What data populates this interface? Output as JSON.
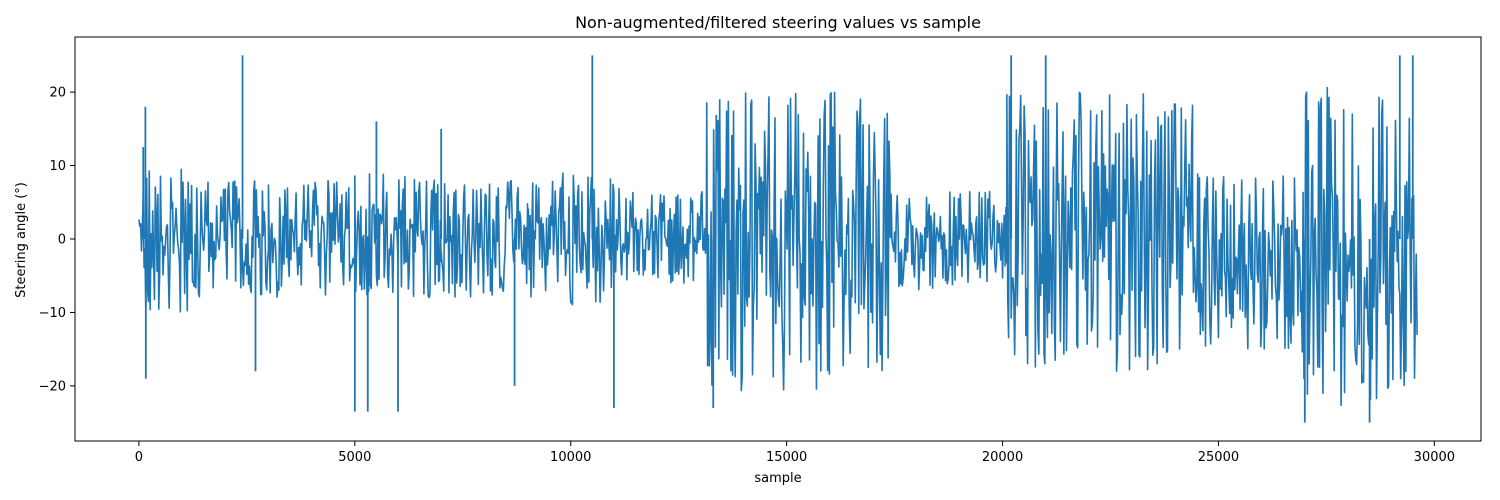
{
  "chart_data": {
    "type": "line",
    "title": "Non-augmented/filtered steering values vs sample",
    "xlabel": "sample",
    "ylabel": "Steering angle (°)",
    "xlim": [
      -1480,
      31080
    ],
    "ylim": [
      -27.5,
      27.5
    ],
    "xticks": [
      0,
      5000,
      10000,
      15000,
      20000,
      25000,
      30000
    ],
    "yticks": [
      -20,
      -10,
      0,
      10,
      20
    ],
    "grid": false,
    "colors": {
      "series": "#1f77b4",
      "axes": "#000000",
      "background": "#ffffff"
    },
    "series": [
      {
        "segments": [
          {
            "x": [
              0,
              1200
            ],
            "amp": [
              -10,
              10
            ]
          },
          {
            "x": [
              1200,
              3000
            ],
            "amp": [
              -8,
              8
            ]
          },
          {
            "x": [
              3000,
              5000
            ],
            "amp": [
              -8,
              8
            ]
          },
          {
            "x": [
              5000,
              7000
            ],
            "amp": [
              -8,
              9
            ]
          },
          {
            "x": [
              7000,
              9000
            ],
            "amp": [
              -8,
              8
            ]
          },
          {
            "x": [
              9000,
              11000
            ],
            "amp": [
              -9,
              9
            ]
          },
          {
            "x": [
              11000,
              13150
            ],
            "amp": [
              -6,
              7
            ]
          },
          {
            "x": [
              13150,
              17400
            ],
            "amp": [
              -21,
              20
            ]
          },
          {
            "x": [
              17400,
              20100
            ],
            "amp": [
              -7,
              6.5
            ]
          },
          {
            "x": [
              20100,
              24400
            ],
            "amp": [
              -18,
              20
            ]
          },
          {
            "x": [
              24400,
              26900
            ],
            "amp": [
              -15,
              9
            ]
          },
          {
            "x": [
              26900,
              29600
            ],
            "amp": [
              -23,
              21
            ]
          }
        ],
        "spikes": [
          {
            "x": 100,
            "y": 12.5
          },
          {
            "x": 150,
            "y": 18
          },
          {
            "x": 160,
            "y": -19
          },
          {
            "x": 2400,
            "y": 25
          },
          {
            "x": 2700,
            "y": -18
          },
          {
            "x": 5000,
            "y": -23.5
          },
          {
            "x": 5300,
            "y": -23.5
          },
          {
            "x": 5500,
            "y": 16
          },
          {
            "x": 6000,
            "y": -23.5
          },
          {
            "x": 7000,
            "y": 15
          },
          {
            "x": 8700,
            "y": -20
          },
          {
            "x": 10500,
            "y": 25
          },
          {
            "x": 11000,
            "y": -23
          },
          {
            "x": 13300,
            "y": -23
          },
          {
            "x": 20200,
            "y": 25
          },
          {
            "x": 21000,
            "y": 25
          },
          {
            "x": 27000,
            "y": -25
          },
          {
            "x": 28500,
            "y": -25
          },
          {
            "x": 29200,
            "y": 25
          },
          {
            "x": 29500,
            "y": 25
          }
        ]
      }
    ]
  }
}
